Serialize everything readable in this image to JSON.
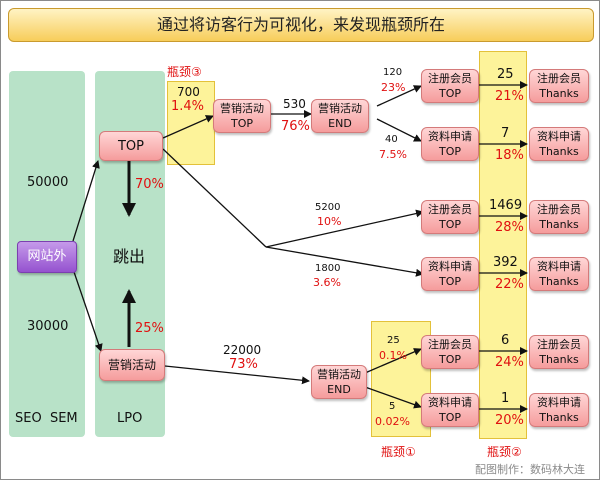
{
  "title": "通过将访客行为可视化，来发现瓶颈所在",
  "columns": {
    "left_label": "SEO  SEM",
    "mid_label": "LPO"
  },
  "left": {
    "top_value": "50000",
    "bottom_value": "30000",
    "site_label": "网站外"
  },
  "mid": {
    "top_node": "TOP",
    "exit_label": "跳出",
    "exit_top_pct": "70%",
    "exit_bottom_pct": "25%",
    "campaign_node": "营销活动"
  },
  "bottlenecks": {
    "b1": "瓶颈①",
    "b2": "瓶颈②",
    "b3": "瓶颈③"
  },
  "b3_values": {
    "count": "700",
    "pct": "1.4%"
  },
  "campaign_top": {
    "line1": "营销活动",
    "line2": "TOP"
  },
  "campaign_end_upper": {
    "line1": "营销活动",
    "line2": "END"
  },
  "campaign_end_lower": {
    "line1": "营销活动",
    "line2": "END"
  },
  "flow_top_to_end": {
    "count": "530",
    "pct": "76%"
  },
  "flow_end_reg": {
    "count": "120",
    "pct": "23%"
  },
  "flow_end_doc": {
    "count": "40",
    "pct": "7.5%"
  },
  "flow_mid_reg": {
    "count": "5200",
    "pct": "10%"
  },
  "flow_mid_doc": {
    "count": "1800",
    "pct": "3.6%"
  },
  "flow_low": {
    "count": "22000",
    "pct": "73%"
  },
  "flow_low_reg": {
    "count": "25",
    "pct": "0.1%"
  },
  "flow_low_doc": {
    "count": "5",
    "pct": "0.02%"
  },
  "nodes": {
    "reg_top": {
      "line1": "注册会员",
      "line2": "TOP"
    },
    "doc_top": {
      "line1": "资料申请",
      "line2": "TOP"
    },
    "reg_thanks": {
      "line1": "注册会员",
      "line2": "Thanks"
    },
    "doc_thanks": {
      "line1": "资料申请",
      "line2": "Thanks"
    }
  },
  "thanks_rows": [
    {
      "count": "25",
      "pct": "21%"
    },
    {
      "count": "7",
      "pct": "18%"
    },
    {
      "count": "1469",
      "pct": "28%"
    },
    {
      "count": "392",
      "pct": "22%"
    },
    {
      "count": "6",
      "pct": "24%"
    },
    {
      "count": "1",
      "pct": "20%"
    }
  ],
  "credit": "配图制作：数码林大连",
  "colors": {
    "accent_red": "#e01010",
    "node_pink": "#f59c9c",
    "column_green": "#b8e2c8",
    "highlight_yellow": "#fdf39a",
    "site_purple": "#9552cf"
  }
}
